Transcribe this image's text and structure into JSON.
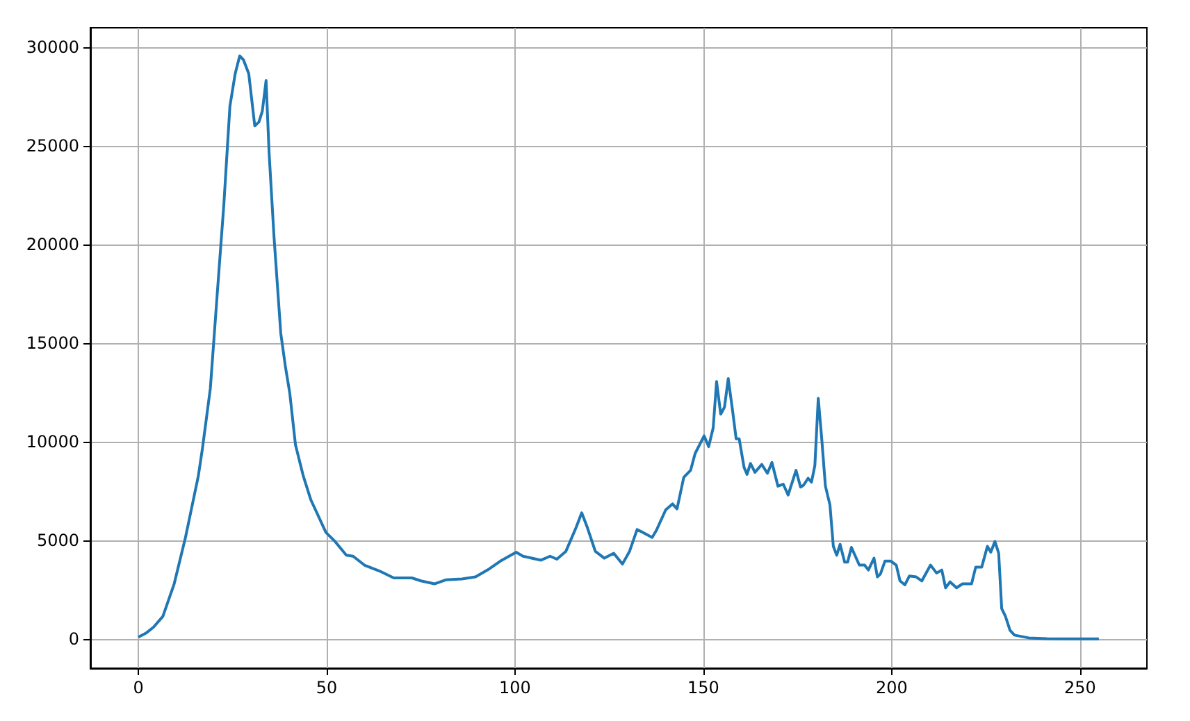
{
  "chart_data": {
    "type": "line",
    "xlim": [
      -12.75,
      267.75
    ],
    "ylim": [
      -1475,
      30975
    ],
    "xticks": [
      0,
      50,
      100,
      150,
      200,
      250
    ],
    "yticks": [
      0,
      5000,
      10000,
      15000,
      20000,
      25000,
      30000
    ],
    "grid": true,
    "marker": "none",
    "line_style": "solid",
    "series": [
      {
        "color": "#1f77b4",
        "x": [
          0,
          2,
          4,
          6.5,
          9.5,
          12.5,
          15.9,
          17,
          19.1,
          20.9,
          22.7,
          24.3,
          25.7,
          26.9,
          27.9,
          29.3,
          30.9,
          32,
          32.9,
          33.9,
          34.7,
          36,
          37.8,
          39,
          40.2,
          41.7,
          43.8,
          45.8,
          49.8,
          52.2,
          55.2,
          57,
          60,
          64,
          67.8,
          72.6,
          75,
          78.6,
          81.6,
          85.9,
          89.5,
          93.1,
          96.1,
          100.3,
          102.1,
          106.9,
          109.3,
          111.1,
          113.5,
          116.2,
          117.7,
          119.2,
          121.3,
          123.7,
          126.2,
          128.5,
          130.4,
          132.4,
          134,
          136.4,
          137.5,
          140,
          141.8,
          143,
          144.8,
          146.6,
          147.8,
          150.2,
          151.4,
          152.6,
          153.5,
          154.6,
          155.6,
          156.6,
          157.8,
          158.7,
          159.5,
          160.8,
          161.6,
          162.5,
          163.7,
          165.5,
          167,
          168.2,
          169.8,
          171.2,
          172.5,
          174.6,
          175.8,
          176.6,
          177.8,
          178.7,
          179.6,
          180.5,
          181.4,
          182.4,
          183.6,
          184.5,
          185.4,
          186.3,
          187.5,
          188.3,
          189.3,
          191.4,
          192.8,
          193.8,
          195.3,
          196.2,
          197,
          198.2,
          199.8,
          201.2,
          202.2,
          203.5,
          204.7,
          206.5,
          208,
          210.3,
          211.9,
          213.3,
          214.3,
          215.5,
          217.2,
          218.8,
          221.2,
          222.3,
          223.9,
          225.4,
          226.3,
          227.4,
          228.4,
          229.2,
          230.2,
          231.4,
          232.6,
          236.4,
          241.2,
          248,
          255
        ],
        "values": [
          100,
          300,
          600,
          1150,
          2800,
          5150,
          8250,
          9650,
          12700,
          17400,
          22050,
          27000,
          28650,
          29550,
          29350,
          28650,
          26000,
          26200,
          26750,
          28300,
          24650,
          20400,
          15500,
          13850,
          12450,
          9850,
          8250,
          7050,
          5400,
          4950,
          4250,
          4200,
          3750,
          3450,
          3100,
          3100,
          2950,
          2800,
          3000,
          3050,
          3150,
          3550,
          3950,
          4400,
          4200,
          4000,
          4200,
          4050,
          4450,
          5650,
          6400,
          5650,
          4450,
          4100,
          4350,
          3800,
          4450,
          5550,
          5400,
          5150,
          5500,
          6550,
          6850,
          6600,
          8200,
          8550,
          9400,
          10300,
          9750,
          10700,
          13050,
          11400,
          11750,
          13200,
          11500,
          10150,
          10150,
          8700,
          8350,
          8900,
          8450,
          8850,
          8400,
          8950,
          7750,
          7850,
          7300,
          8550,
          7700,
          7800,
          8150,
          7950,
          8800,
          12200,
          10200,
          7750,
          6800,
          4700,
          4250,
          4800,
          3900,
          3900,
          4650,
          3750,
          3750,
          3500,
          4100,
          3150,
          3300,
          3950,
          3950,
          3750,
          2950,
          2750,
          3200,
          3150,
          2950,
          3750,
          3350,
          3500,
          2600,
          2900,
          2600,
          2800,
          2800,
          3650,
          3650,
          4700,
          4400,
          4950,
          4350,
          1550,
          1150,
          450,
          200,
          60,
          20,
          10,
          10
        ]
      }
    ]
  }
}
